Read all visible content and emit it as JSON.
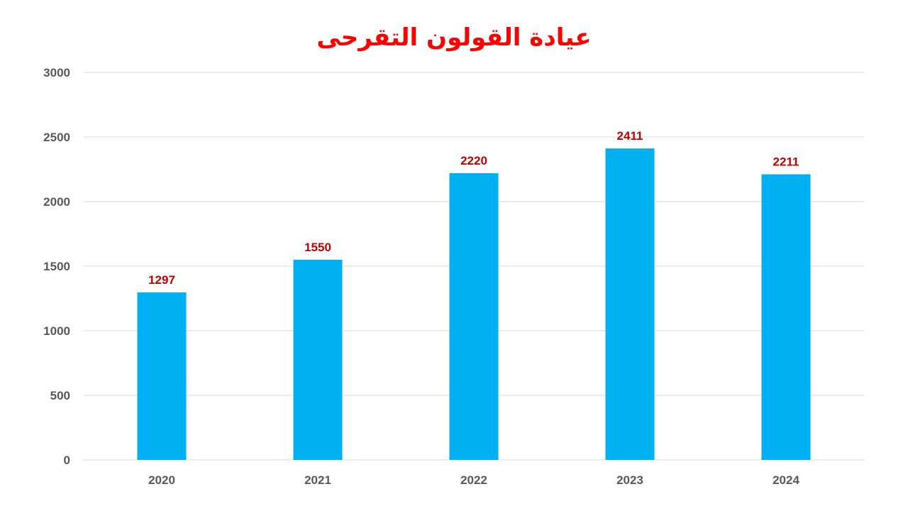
{
  "chart_data": {
    "type": "bar",
    "title": "عيادة القولون التقرحى",
    "xlabel": "",
    "ylabel": "",
    "categories": [
      "2020",
      "2021",
      "2022",
      "2023",
      "2024"
    ],
    "values": [
      1297,
      1550,
      2220,
      2411,
      2211
    ],
    "ylim": [
      0,
      3000
    ],
    "yticks": [
      0,
      500,
      1000,
      1500,
      2000,
      2500,
      3000
    ],
    "grid": true,
    "legend": "none",
    "data_labels": true,
    "colors": {
      "bar": "#00b0f0",
      "data_label": "#c00000",
      "title": "#ff0000",
      "gridline": "#d9d9d9",
      "axis_text": "#595959"
    }
  }
}
